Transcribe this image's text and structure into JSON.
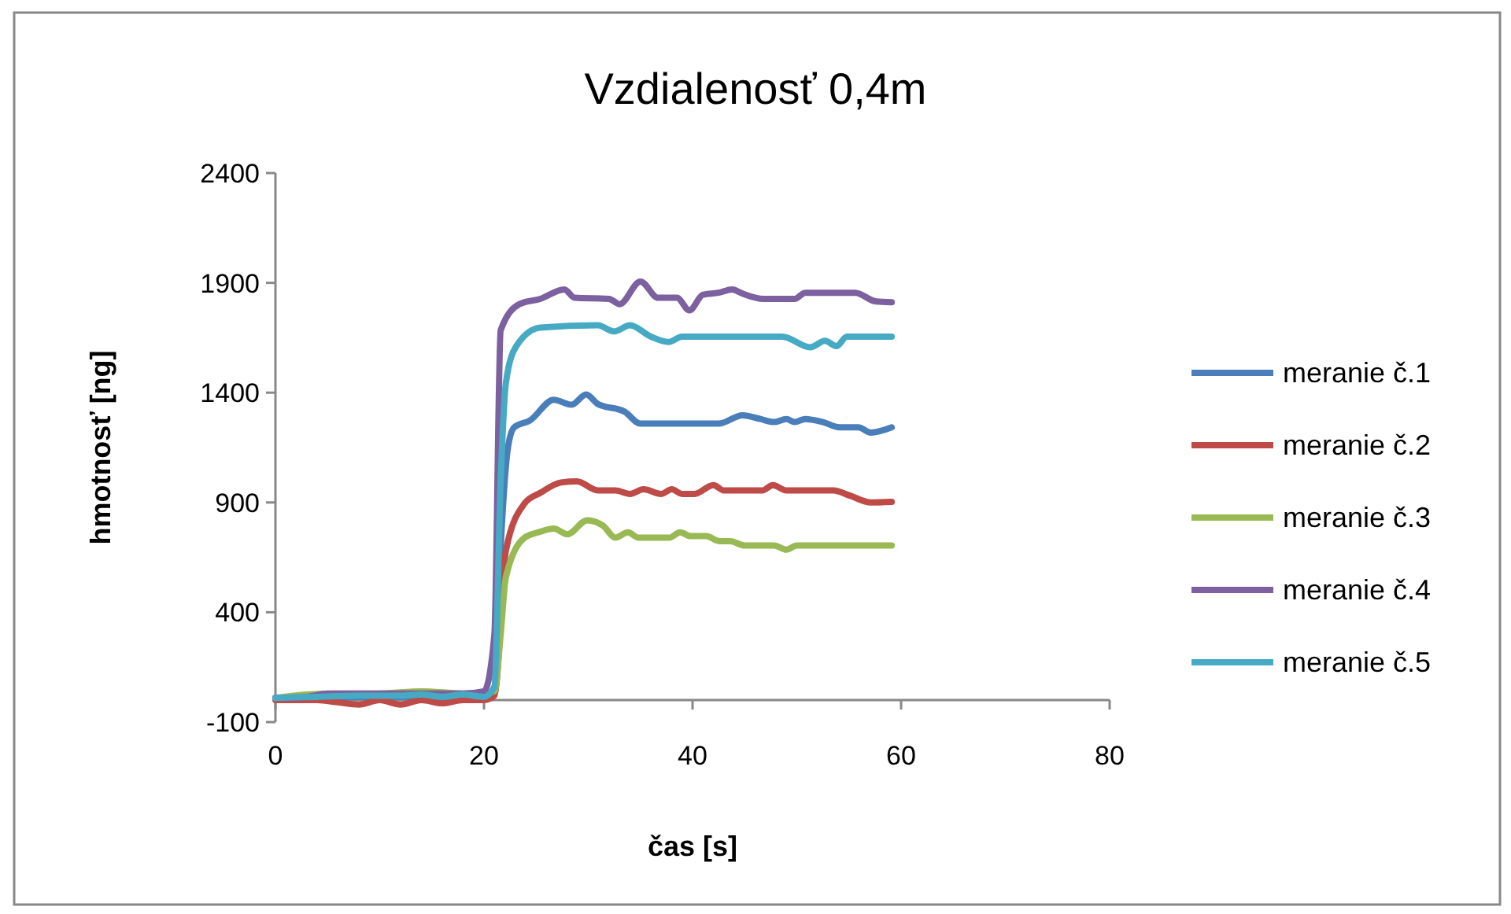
{
  "chart_data": {
    "type": "line",
    "title": "Vzdialenosť 0,4m",
    "xlabel": "čas [s]",
    "ylabel": "hmotnosť [ng]",
    "xlim": [
      0,
      80
    ],
    "xticks": [
      0,
      20,
      40,
      60,
      80
    ],
    "ylim": [
      -100,
      2400
    ],
    "yticks": [
      -100,
      400,
      900,
      1400,
      1900,
      2400
    ],
    "grid": false,
    "legend": "right",
    "marker": "none",
    "line_style": "solid",
    "series": [
      {
        "name": "meranie č.1",
        "color": "#4a7ebb",
        "x": [
          0,
          4,
          8,
          12,
          16,
          20,
          21,
          21.6,
          22.3,
          22.9,
          24.4,
          26.7,
          28.4,
          29.8,
          30.9,
          33.5,
          35,
          42.5,
          44.8,
          46.5,
          47.8,
          49,
          49.8,
          50.8,
          52.5,
          54.1,
          55.9,
          57.1,
          59.1
        ],
        "values": [
          10,
          10,
          15,
          15,
          15,
          15,
          60,
          700,
          1150,
          1242,
          1273,
          1368,
          1345,
          1392,
          1349,
          1313,
          1259,
          1259,
          1297,
          1280,
          1266,
          1280,
          1266,
          1280,
          1266,
          1242,
          1242,
          1218,
          1242
        ]
      },
      {
        "name": "meranie č.2",
        "color": "#be4b48",
        "x": [
          0,
          4,
          6,
          8,
          10,
          12,
          14,
          16,
          18,
          20,
          21,
          22.1,
          23.9,
          25.4,
          27.4,
          28.9,
          30.9,
          32.6,
          34,
          35.3,
          37,
          38,
          39,
          40.2,
          42,
          43,
          46.7,
          47.7,
          49,
          53.5,
          55.1,
          57.1,
          59.1
        ],
        "values": [
          0,
          0,
          -10,
          -20,
          0,
          -20,
          0,
          -15,
          0,
          0,
          20,
          681,
          896,
          944,
          991,
          996,
          955,
          955,
          939,
          960,
          939,
          960,
          939,
          939,
          979,
          955,
          955,
          979,
          955,
          955,
          931,
          900,
          903
        ]
      },
      {
        "name": "meranie č.3",
        "color": "#98b954",
        "x": [
          0,
          3,
          6,
          10,
          14,
          18,
          20,
          21,
          21.6,
          22.1,
          23.9,
          25.2,
          26.7,
          28,
          29.9,
          31.4,
          32.6,
          33.8,
          34.8,
          37.8,
          38.8,
          39.8,
          41.3,
          42.6,
          43.6,
          45,
          47.8,
          49,
          50,
          59.1
        ],
        "values": [
          10,
          25,
          30,
          30,
          40,
          30,
          30,
          40,
          300,
          561,
          740,
          764,
          781,
          755,
          819,
          795,
          740,
          764,
          740,
          740,
          764,
          747,
          747,
          724,
          724,
          704,
          704,
          685,
          704,
          704
        ]
      },
      {
        "name": "meranie č.4",
        "color": "#7d60a0",
        "x": [
          0,
          3,
          5,
          10,
          14,
          18,
          20,
          21,
          21.6,
          23.4,
          25.4,
          27.7,
          28.7,
          32,
          33,
          35,
          36.7,
          38.5,
          39.7,
          41,
          42.5,
          43.8,
          44.8,
          46.8,
          49.8,
          50.8,
          55.6,
          57.6,
          59.1
        ],
        "values": [
          10,
          15,
          30,
          30,
          30,
          30,
          40,
          300,
          1684,
          1803,
          1827,
          1870,
          1832,
          1827,
          1803,
          1906,
          1832,
          1832,
          1775,
          1846,
          1855,
          1870,
          1851,
          1827,
          1827,
          1855,
          1855,
          1815,
          1812
        ]
      },
      {
        "name": "meranie č.5",
        "color": "#46aac5",
        "x": [
          0,
          4,
          8,
          12,
          14,
          16,
          18,
          20,
          21,
          21.6,
          22.1,
          23.1,
          25.4,
          30.9,
          32.5,
          34,
          36,
          37.7,
          39,
          48.6,
          51.3,
          52.7,
          53.8,
          54.8,
          59.1
        ],
        "values": [
          10,
          15,
          20,
          20,
          25,
          15,
          25,
          15,
          60,
          1000,
          1445,
          1612,
          1696,
          1707,
          1679,
          1707,
          1655,
          1631,
          1655,
          1655,
          1607,
          1636,
          1612,
          1655,
          1655
        ]
      }
    ]
  }
}
